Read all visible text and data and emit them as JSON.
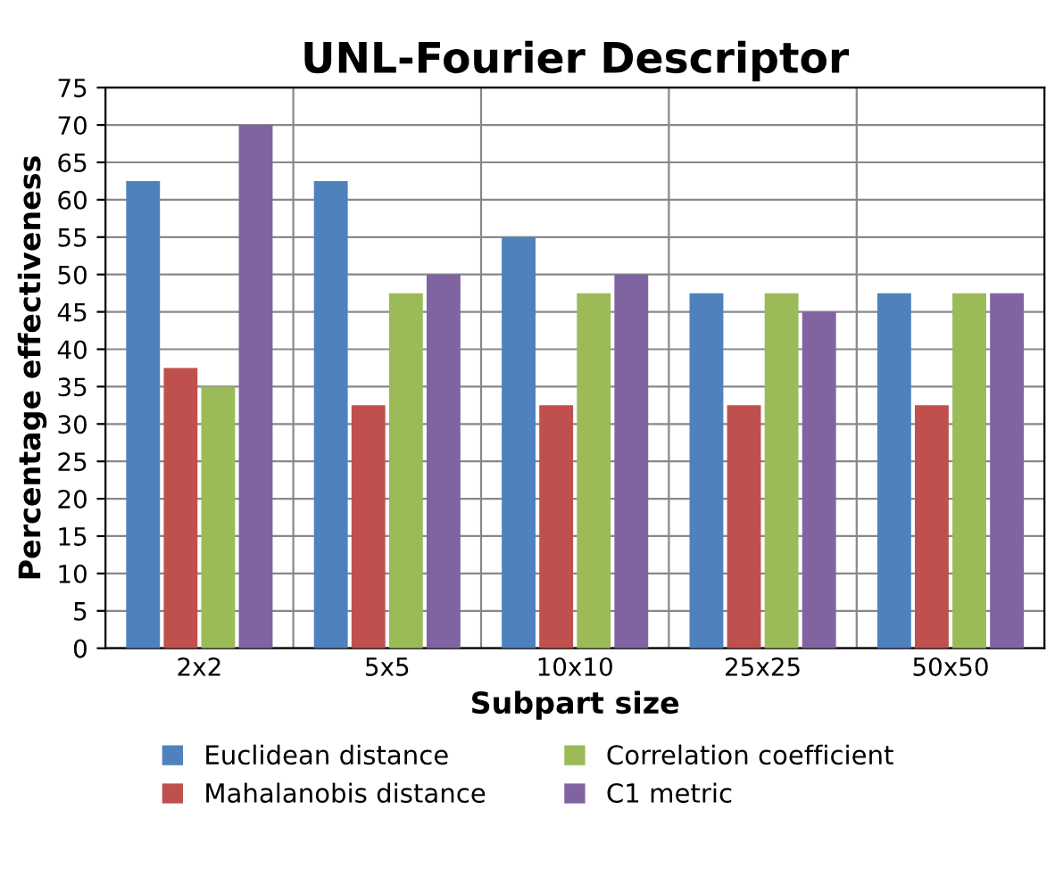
{
  "chart_data": {
    "type": "bar",
    "title": "UNL-Fourier Descriptor",
    "xlabel": "Subpart size",
    "ylabel": "Percentage effectiveness",
    "categories": [
      "2x2",
      "5x5",
      "10x10",
      "25x25",
      "50x50"
    ],
    "series": [
      {
        "name": "Euclidean distance",
        "color": "#4f81bd",
        "values": [
          62.5,
          62.5,
          55,
          47.5,
          47.5
        ]
      },
      {
        "name": "Mahalanobis distance",
        "color": "#c0504d",
        "values": [
          37.5,
          32.5,
          32.5,
          32.5,
          32.5
        ]
      },
      {
        "name": "Correlation coefficient",
        "color": "#9bbb59",
        "values": [
          35,
          47.5,
          47.5,
          47.5,
          47.5
        ]
      },
      {
        "name": "C1 metric",
        "color": "#8064a2",
        "values": [
          70,
          50,
          50,
          45,
          47.5
        ]
      }
    ],
    "ylim": [
      0,
      75
    ],
    "yticks": [
      0,
      5,
      10,
      15,
      20,
      25,
      30,
      35,
      40,
      45,
      50,
      55,
      60,
      65,
      70,
      75
    ],
    "grid": true,
    "legend": "bottom"
  }
}
